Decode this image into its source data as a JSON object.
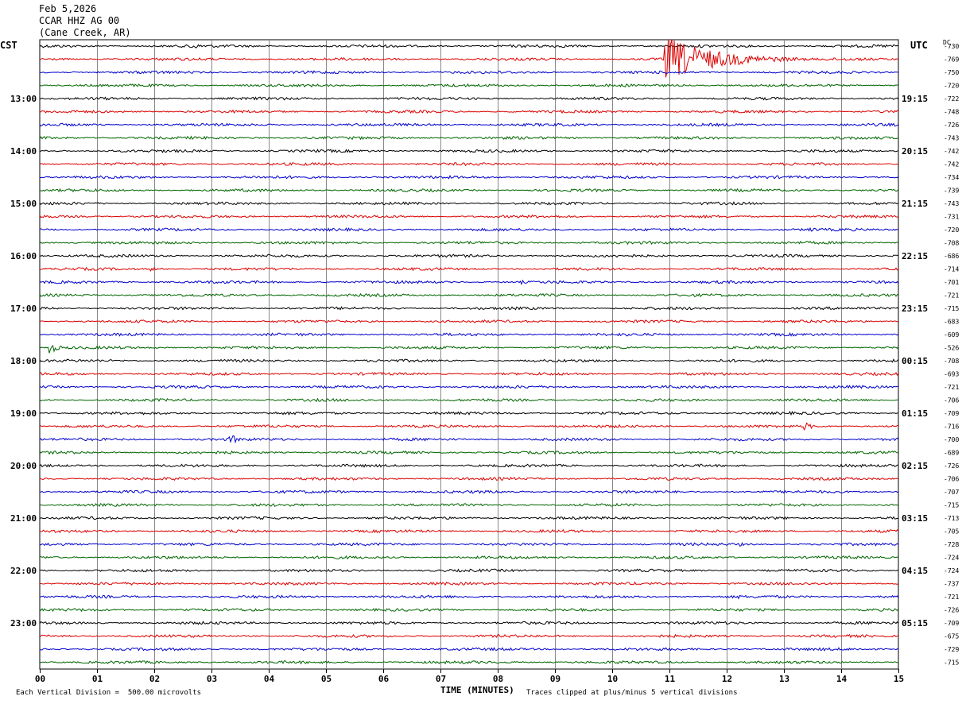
{
  "header": {
    "date": "Feb 5,2026",
    "station": "CCAR HHZ AG 00",
    "location": "(Cane Creek, AR)"
  },
  "left_tz": "CST",
  "right_tz": "UTC",
  "dc_label": "DC",
  "footer": {
    "scale_note": "Each Vertical Division =  500.00 microvolts",
    "clip_note": "Traces clipped at plus/minus 5 vertical divisions",
    "xlabel": "TIME (MINUTES)"
  },
  "colors": {
    "trace_cycle": [
      "#000000",
      "#dd0000",
      "#0000cc",
      "#006600"
    ],
    "grid": "#888888"
  },
  "chart_data": {
    "type": "line",
    "title": "CCAR HHZ AG 00 (Cane Creek, AR) Feb 5,2026",
    "xlabel": "TIME (MINUTES)",
    "xlim": [
      0,
      15
    ],
    "x_ticks": [
      "00",
      "01",
      "02",
      "03",
      "04",
      "05",
      "06",
      "07",
      "08",
      "09",
      "10",
      "11",
      "12",
      "13",
      "14",
      "15"
    ],
    "left_hour_labels": [
      "13:00",
      "14:00",
      "15:00",
      "16:00",
      "17:00",
      "18:00",
      "19:00",
      "20:00",
      "21:00",
      "22:00",
      "23:00"
    ],
    "right_hour_labels": [
      "19:15",
      "20:15",
      "21:15",
      "22:15",
      "23:15",
      "00:15",
      "01:15",
      "02:15",
      "03:15",
      "04:15",
      "05:15"
    ],
    "hour_label_first_trace": 4,
    "trace_count": 48,
    "dc_offsets": [
      "-730",
      "-769",
      "-750",
      "-720",
      "-722",
      "-748",
      "-726",
      "-743",
      "-742",
      "-742",
      "-734",
      "-739",
      "-743",
      "-731",
      "-720",
      "-708",
      "-686",
      "-714",
      "-701",
      "-721",
      "-715",
      "-683",
      "-609",
      "-526",
      "-708",
      "-693",
      "-721",
      "-706",
      "-709",
      "-716",
      "-700",
      "-689",
      "-726",
      "-706",
      "-707",
      "-715",
      "-713",
      "-705",
      "-728",
      "-724",
      "-724",
      "-737",
      "-721",
      "-726",
      "-709",
      "-675",
      "-729",
      "-715"
    ],
    "events": [
      {
        "trace": 0,
        "start_min": 2.6,
        "end_min": 3.1,
        "amp": 6
      },
      {
        "trace": 1,
        "start_min": 10.9,
        "end_min": 13.5,
        "amp": 30
      },
      {
        "trace": 14,
        "start_min": 13.45,
        "end_min": 13.7,
        "amp": 6
      },
      {
        "trace": 17,
        "start_min": 1.9,
        "end_min": 2.6,
        "amp": 3
      },
      {
        "trace": 18,
        "start_min": 8.4,
        "end_min": 8.8,
        "amp": 3
      },
      {
        "trace": 23,
        "start_min": 0.15,
        "end_min": 0.6,
        "amp": 9
      },
      {
        "trace": 29,
        "start_min": 13.35,
        "end_min": 13.8,
        "amp": 6
      },
      {
        "trace": 30,
        "start_min": 3.3,
        "end_min": 3.9,
        "amp": 7
      },
      {
        "trace": 38,
        "start_min": 12.2,
        "end_min": 12.6,
        "amp": 3
      },
      {
        "trace": 42,
        "start_min": 12.2,
        "end_min": 12.5,
        "amp": 3
      }
    ]
  }
}
